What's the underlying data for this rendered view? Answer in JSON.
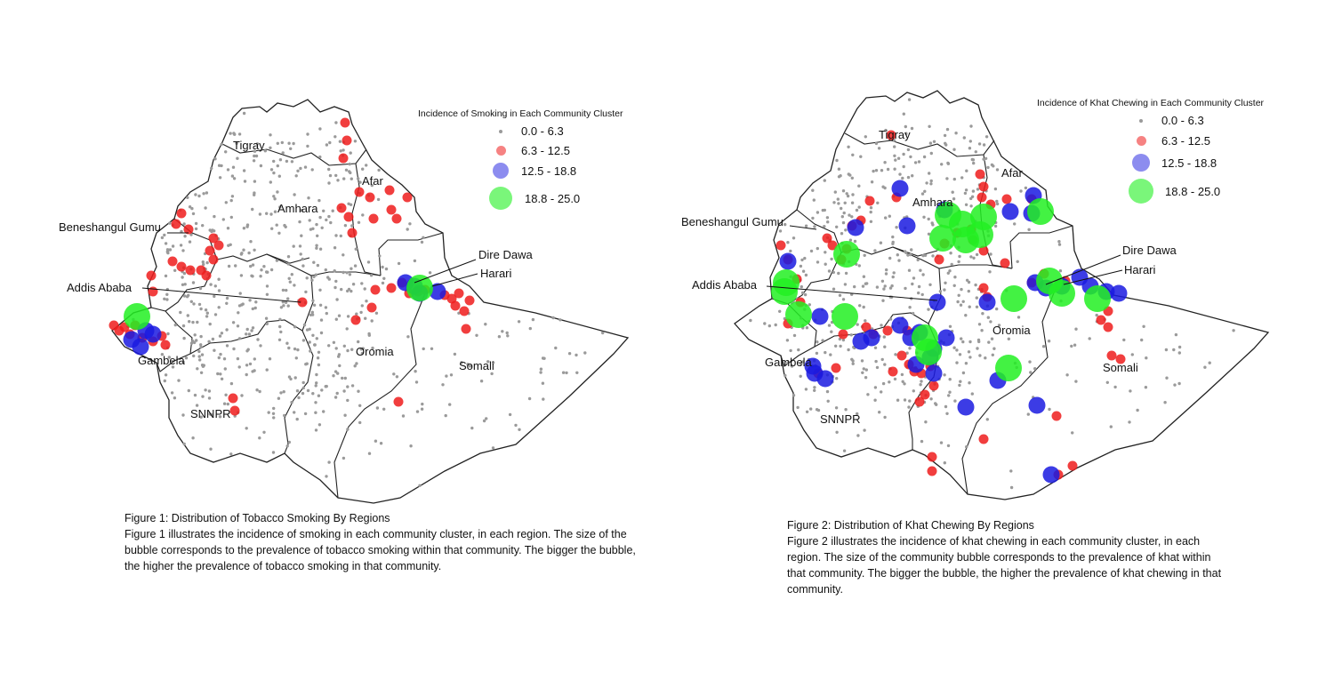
{
  "colors": {
    "low": "#9a9a9a",
    "mid": "#ee1c1c",
    "high": "#1a1ae0",
    "top": "#22f022",
    "border": "#222222"
  },
  "figure1": {
    "legend": {
      "title": "Incidence of Smoking in Each Community Cluster",
      "items": [
        {
          "label": "0.0 - 6.3",
          "class": "low"
        },
        {
          "label": "6.3 - 12.5",
          "class": "mid"
        },
        {
          "label": "12.5 - 18.8",
          "class": "high"
        },
        {
          "label": "18.8 - 25.0",
          "class": "top"
        }
      ]
    },
    "regions": {
      "tigray": "Tigray",
      "afar": "Afar",
      "amhara": "Amhara",
      "beneshangul": "Beneshangul Gumu",
      "dire_dawa": "Dire Dawa",
      "harari": "Harari",
      "addis_ababa": "Addis Ababa",
      "oromia": "Oromia",
      "somali": "Somali",
      "gambela": "Gambela",
      "snnpr": "SNNPR"
    },
    "caption_title": "Figure 1: Distribution of Tobacco Smoking By Regions",
    "caption_body": "Figure 1 illustrates the incidence of smoking in each community cluster, in each region. The size of the bubble corresponds to the prevalence of tobacco smoking within that community. The bigger the bubble, the higher the prevalence of tobacco smoking in that community."
  },
  "figure2": {
    "legend": {
      "title": "Incidence of Khat Chewing in Each Community Cluster",
      "items": [
        {
          "label": "0.0 - 6.3",
          "class": "low"
        },
        {
          "label": "6.3 - 12.5",
          "class": "mid"
        },
        {
          "label": "12.5 - 18.8",
          "class": "high"
        },
        {
          "label": "18.8 - 25.0",
          "class": "top"
        }
      ]
    },
    "regions": {
      "tigray": "Tigray",
      "afar": "Afar",
      "amhara": "Amhara",
      "beneshangul": "Beneshangul Gumu",
      "dire_dawa": "Dire Dawa",
      "harari": "Harari",
      "addis_ababa": "Addis Ababa",
      "oromia": "Oromia",
      "somali": "Somali",
      "gambela": "Gambela",
      "snnpr": "SNNPR"
    },
    "caption_title": "Figure 2: Distribution of Khat Chewing By Regions",
    "caption_body": "Figure 2 illustrates the incidence of khat chewing in each community cluster, in each region. The size of the community bubble corresponds to the prevalence of khat within that community. The bigger the bubble, the higher the prevalence of khat chewing in that community."
  }
}
